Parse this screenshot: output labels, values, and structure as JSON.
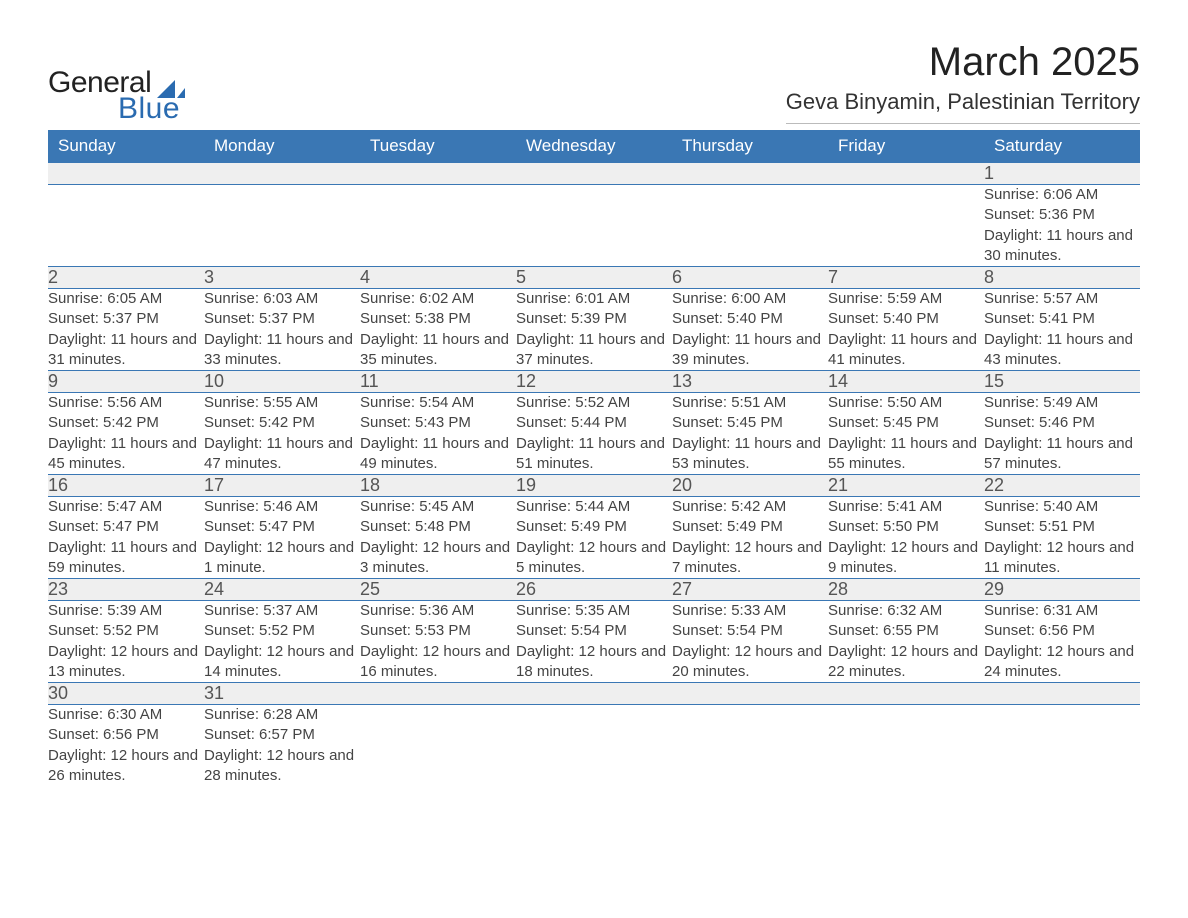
{
  "brand": {
    "word1": "General",
    "word2": "Blue"
  },
  "header": {
    "month_title": "March 2025",
    "location": "Geva Binyamin, Palestinian Territory"
  },
  "colors": {
    "header_bg": "#3a77b4",
    "header_fg": "#ffffff",
    "daynum_bg": "#efefef",
    "row_divider": "#3a77b4",
    "brand_blue": "#2a6bb0"
  },
  "weekdays": [
    "Sunday",
    "Monday",
    "Tuesday",
    "Wednesday",
    "Thursday",
    "Friday",
    "Saturday"
  ],
  "weeks": [
    {
      "nums": [
        "",
        "",
        "",
        "",
        "",
        "",
        "1"
      ],
      "cells": [
        "",
        "",
        "",
        "",
        "",
        "",
        "Sunrise: 6:06 AM|Sunset: 5:36 PM|Daylight: 11 hours and 30 minutes."
      ]
    },
    {
      "nums": [
        "2",
        "3",
        "4",
        "5",
        "6",
        "7",
        "8"
      ],
      "cells": [
        "Sunrise: 6:05 AM|Sunset: 5:37 PM|Daylight: 11 hours and 31 minutes.",
        "Sunrise: 6:03 AM|Sunset: 5:37 PM|Daylight: 11 hours and 33 minutes.",
        "Sunrise: 6:02 AM|Sunset: 5:38 PM|Daylight: 11 hours and 35 minutes.",
        "Sunrise: 6:01 AM|Sunset: 5:39 PM|Daylight: 11 hours and 37 minutes.",
        "Sunrise: 6:00 AM|Sunset: 5:40 PM|Daylight: 11 hours and 39 minutes.",
        "Sunrise: 5:59 AM|Sunset: 5:40 PM|Daylight: 11 hours and 41 minutes.",
        "Sunrise: 5:57 AM|Sunset: 5:41 PM|Daylight: 11 hours and 43 minutes."
      ]
    },
    {
      "nums": [
        "9",
        "10",
        "11",
        "12",
        "13",
        "14",
        "15"
      ],
      "cells": [
        "Sunrise: 5:56 AM|Sunset: 5:42 PM|Daylight: 11 hours and 45 minutes.",
        "Sunrise: 5:55 AM|Sunset: 5:42 PM|Daylight: 11 hours and 47 minutes.",
        "Sunrise: 5:54 AM|Sunset: 5:43 PM|Daylight: 11 hours and 49 minutes.",
        "Sunrise: 5:52 AM|Sunset: 5:44 PM|Daylight: 11 hours and 51 minutes.",
        "Sunrise: 5:51 AM|Sunset: 5:45 PM|Daylight: 11 hours and 53 minutes.",
        "Sunrise: 5:50 AM|Sunset: 5:45 PM|Daylight: 11 hours and 55 minutes.",
        "Sunrise: 5:49 AM|Sunset: 5:46 PM|Daylight: 11 hours and 57 minutes."
      ]
    },
    {
      "nums": [
        "16",
        "17",
        "18",
        "19",
        "20",
        "21",
        "22"
      ],
      "cells": [
        "Sunrise: 5:47 AM|Sunset: 5:47 PM|Daylight: 11 hours and 59 minutes.",
        "Sunrise: 5:46 AM|Sunset: 5:47 PM|Daylight: 12 hours and 1 minute.",
        "Sunrise: 5:45 AM|Sunset: 5:48 PM|Daylight: 12 hours and 3 minutes.",
        "Sunrise: 5:44 AM|Sunset: 5:49 PM|Daylight: 12 hours and 5 minutes.",
        "Sunrise: 5:42 AM|Sunset: 5:49 PM|Daylight: 12 hours and 7 minutes.",
        "Sunrise: 5:41 AM|Sunset: 5:50 PM|Daylight: 12 hours and 9 minutes.",
        "Sunrise: 5:40 AM|Sunset: 5:51 PM|Daylight: 12 hours and 11 minutes."
      ]
    },
    {
      "nums": [
        "23",
        "24",
        "25",
        "26",
        "27",
        "28",
        "29"
      ],
      "cells": [
        "Sunrise: 5:39 AM|Sunset: 5:52 PM|Daylight: 12 hours and 13 minutes.",
        "Sunrise: 5:37 AM|Sunset: 5:52 PM|Daylight: 12 hours and 14 minutes.",
        "Sunrise: 5:36 AM|Sunset: 5:53 PM|Daylight: 12 hours and 16 minutes.",
        "Sunrise: 5:35 AM|Sunset: 5:54 PM|Daylight: 12 hours and 18 minutes.",
        "Sunrise: 5:33 AM|Sunset: 5:54 PM|Daylight: 12 hours and 20 minutes.",
        "Sunrise: 6:32 AM|Sunset: 6:55 PM|Daylight: 12 hours and 22 minutes.",
        "Sunrise: 6:31 AM|Sunset: 6:56 PM|Daylight: 12 hours and 24 minutes."
      ]
    },
    {
      "nums": [
        "30",
        "31",
        "",
        "",
        "",
        "",
        ""
      ],
      "cells": [
        "Sunrise: 6:30 AM|Sunset: 6:56 PM|Daylight: 12 hours and 26 minutes.",
        "Sunrise: 6:28 AM|Sunset: 6:57 PM|Daylight: 12 hours and 28 minutes.",
        "",
        "",
        "",
        "",
        ""
      ]
    }
  ]
}
